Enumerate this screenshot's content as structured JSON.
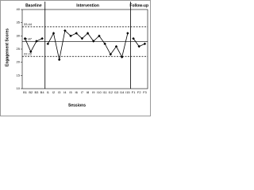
{
  "chart_data": {
    "type": "line",
    "y_label": "Engagement Scores",
    "x_label": "Sessions",
    "categories": [
      "B1",
      "B2",
      "B3",
      "B4",
      "I1",
      "I2",
      "I3",
      "I4",
      "I5",
      "I6",
      "I7",
      "I8",
      "I9",
      "I10",
      "I11",
      "I12",
      "I13",
      "I14",
      "I15",
      "F1",
      "F2",
      "F3"
    ],
    "series": [
      {
        "name": "Baseline",
        "color": "#000000",
        "values": [
          29,
          24,
          28,
          29,
          null,
          null,
          null,
          null,
          null,
          null,
          null,
          null,
          null,
          null,
          null,
          null,
          null,
          null,
          null,
          null,
          null,
          null
        ]
      },
      {
        "name": "Intervention",
        "color": "#000000",
        "values": [
          null,
          null,
          null,
          null,
          27,
          31,
          21,
          32,
          30,
          31,
          29,
          31,
          28,
          30,
          27,
          23,
          26,
          22,
          31,
          null,
          null,
          null
        ]
      },
      {
        "name": "Follow-up",
        "color": "#000000",
        "values": [
          null,
          null,
          null,
          null,
          null,
          null,
          null,
          null,
          null,
          null,
          null,
          null,
          null,
          null,
          null,
          null,
          null,
          null,
          null,
          29,
          26,
          27
        ]
      }
    ],
    "reference_lines": [
      {
        "value": 33.44,
        "style": "dashed"
      },
      {
        "value": 27.87,
        "style": "solid"
      },
      {
        "value": 22.22,
        "style": "dashed"
      }
    ],
    "ylim": [
      10,
      40
    ],
    "yticks": [
      10,
      15,
      20,
      25,
      30,
      35,
      40
    ]
  }
}
